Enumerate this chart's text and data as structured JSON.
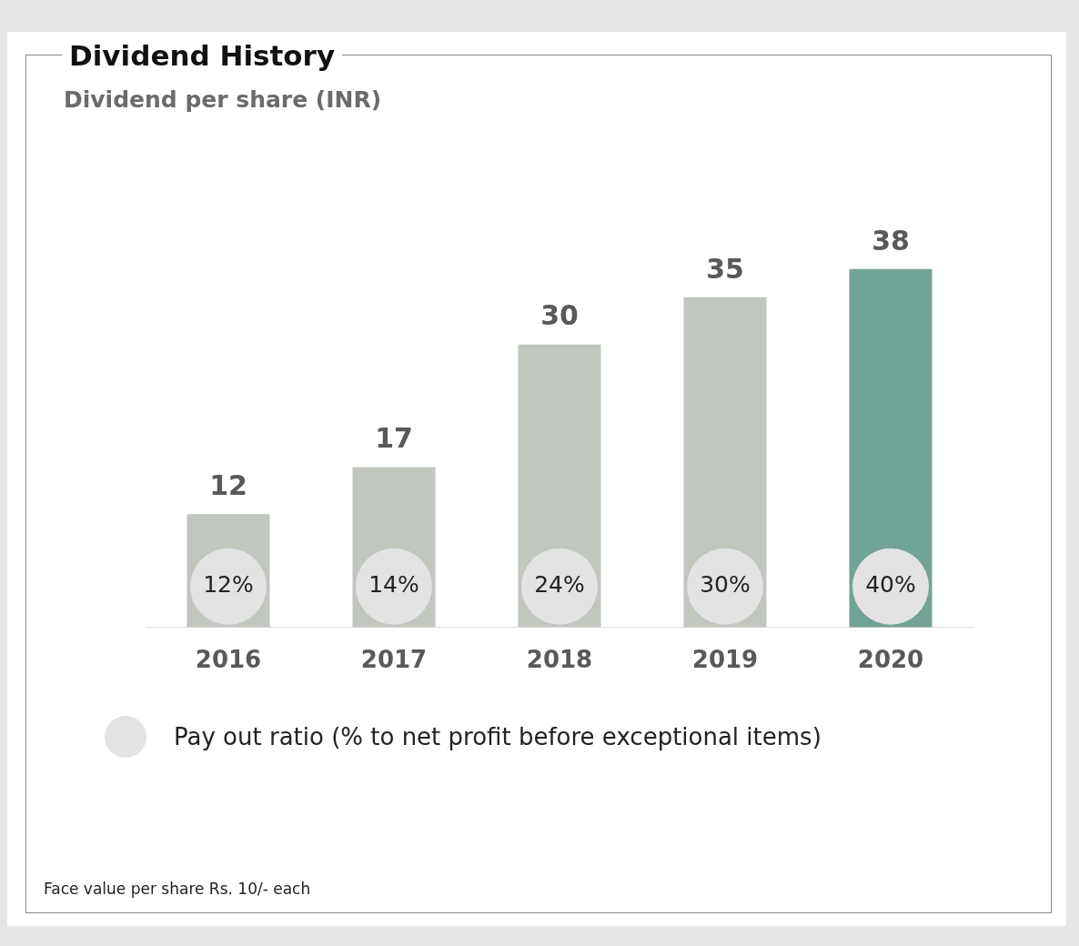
{
  "chart_data": {
    "type": "bar",
    "title": "Dividend History",
    "subtitle": "Dividend per share (INR)",
    "categories": [
      "2016",
      "2017",
      "2018",
      "2019",
      "2020"
    ],
    "values": [
      12,
      17,
      30,
      35,
      38
    ],
    "colors": [
      "#c1c6bf",
      "#c1c6bf",
      "#c1c6bf",
      "#c1c6bf",
      "#71a396"
    ],
    "data_labels": true,
    "grid": false,
    "legend": false,
    "annotations": [
      "12%",
      "14%",
      "24%",
      "30%",
      "40%",
      "Pay out ratio (% to net profit before exceptional items)",
      "Face value per share Rs. 10/- each"
    ]
  }
}
